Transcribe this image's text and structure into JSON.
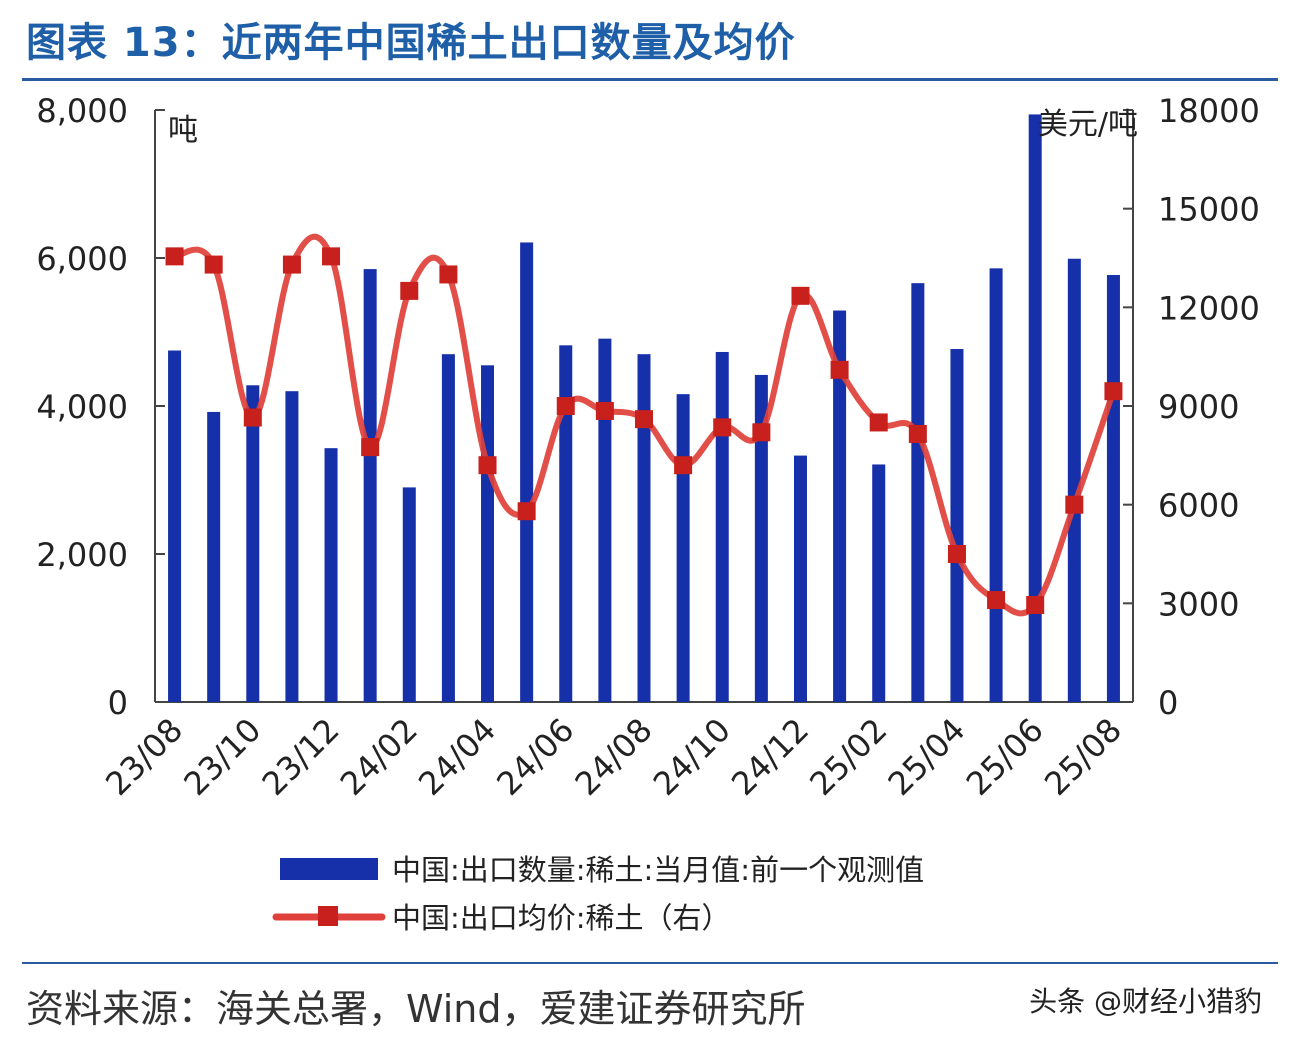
{
  "title": "图表 13：近两年中国稀土出口数量及均价",
  "source": "资料来源：海关总署，Wind，爱建证券研究所",
  "watermark": "头条 @财经小猎豹",
  "colors": {
    "bar": "#1530a8",
    "line": "#e0403a",
    "marker": "#c8201c",
    "title": "#1f5fa8"
  },
  "chart_data": {
    "type": "bar+line",
    "left_axis_unit": "吨",
    "right_axis_unit": "美元/吨",
    "ylim_left": [
      0,
      8000
    ],
    "ylim_right": [
      0,
      18000
    ],
    "left_ticks": [
      "0",
      "2,000",
      "4,000",
      "6,000",
      "8,000"
    ],
    "right_ticks": [
      "0",
      "3000",
      "6000",
      "9000",
      "12000",
      "15000",
      "18000"
    ],
    "x_tick_labels": [
      "23/08",
      "23/10",
      "23/12",
      "24/02",
      "24/04",
      "24/06",
      "24/08",
      "24/10",
      "24/12",
      "25/02",
      "25/04",
      "25/06",
      "25/08"
    ],
    "categories": [
      "23/08",
      "23/09",
      "23/10",
      "23/11",
      "23/12",
      "24/01",
      "24/02",
      "24/03",
      "24/04",
      "24/05",
      "24/06",
      "24/07",
      "24/08",
      "24/09",
      "24/10",
      "24/11",
      "24/12",
      "25/01",
      "25/02",
      "25/03",
      "25/04",
      "25/05",
      "25/06",
      "25/07",
      "25/08"
    ],
    "series": [
      {
        "name": "中国:出口数量:稀土:当月值:前一个观测值",
        "type": "bar",
        "axis": "left",
        "values": [
          4750,
          3920,
          4280,
          4200,
          3430,
          5850,
          2900,
          4700,
          4550,
          6210,
          4820,
          4910,
          4700,
          4160,
          4730,
          4420,
          3330,
          5290,
          3210,
          5660,
          4770,
          5860,
          7940,
          5990,
          5770
        ]
      },
      {
        "name": "中国:出口均价:稀土（右）",
        "type": "line",
        "axis": "right",
        "values": [
          13550,
          13300,
          8650,
          13300,
          13550,
          7750,
          12500,
          13000,
          7200,
          5800,
          9000,
          8850,
          8600,
          7200,
          8350,
          8200,
          12350,
          10100,
          8500,
          8150,
          4500,
          3100,
          2950,
          6000,
          9450
        ]
      }
    ],
    "legend_position": "bottom-center"
  }
}
